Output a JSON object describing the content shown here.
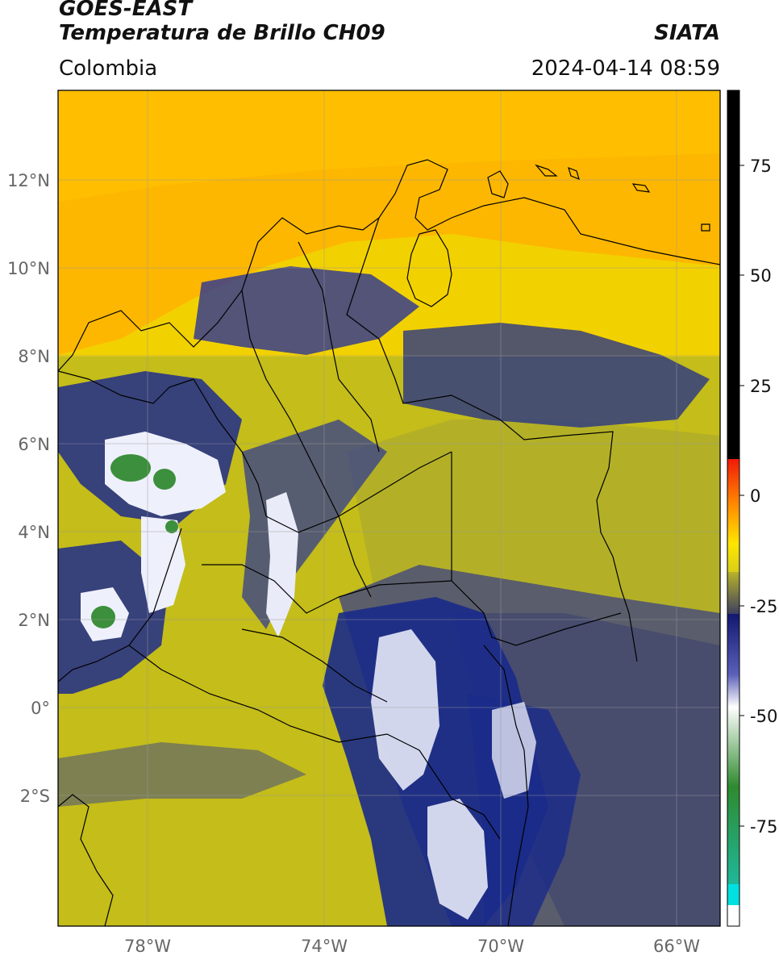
{
  "header": {
    "satellite": "GOES-EAST",
    "product": "Temperatura de Brillo CH09",
    "region": "Colombia",
    "source": "SIATA",
    "datetime": "2024-04-14 08:59"
  },
  "map": {
    "lat_labels": [
      "12°N",
      "10°N",
      "8°N",
      "6°N",
      "4°N",
      "2°N",
      "0°",
      "2°S"
    ],
    "lon_labels": [
      "78°W",
      "74°W",
      "70°W",
      "66°W"
    ],
    "colors": {
      "warm_yellow": "#f2d100",
      "orange": "#ffb300",
      "olive": "#c4bd1a",
      "gray_blue": "#4a4f78",
      "deep_blue": "#1a2a8a",
      "white": "#f2f2f8",
      "green": "#3c8f3c"
    }
  },
  "colorbar": {
    "tick_labels": [
      "75",
      "50",
      "25",
      "0",
      "-25",
      "-50",
      "-75"
    ],
    "colors": {
      "black": "#000000",
      "red": "#f01a0a",
      "yellow": "#ffe600",
      "navy": "#1a1f8a",
      "white": "#ffffff",
      "green": "#2f8a2f",
      "cyan": "#00e0e0"
    }
  }
}
